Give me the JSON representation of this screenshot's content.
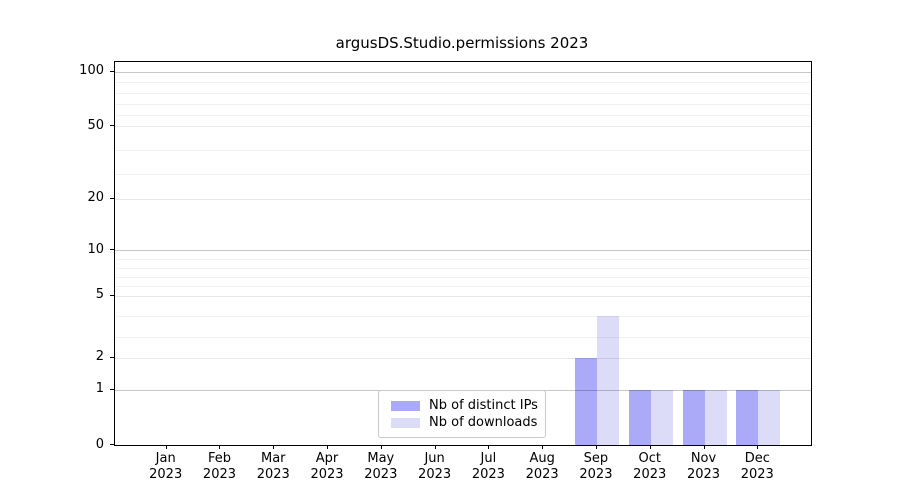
{
  "chart_data": {
    "type": "bar",
    "title": "argusDS.Studio.permissions 2023",
    "x_months": [
      "Jan",
      "Feb",
      "Mar",
      "Apr",
      "May",
      "Jun",
      "Jul",
      "Aug",
      "Sep",
      "Oct",
      "Nov",
      "Dec"
    ],
    "x_year": "2023",
    "series": [
      {
        "name": "Nb of distinct IPs",
        "color": "#aaaaf8",
        "values": [
          0,
          0,
          0,
          0,
          0,
          0,
          0,
          0,
          2,
          1,
          1,
          1
        ]
      },
      {
        "name": "Nb of downloads",
        "color": "#dcdcf8",
        "values": [
          0,
          0,
          0,
          0,
          0,
          0,
          0,
          0,
          4,
          1,
          1,
          1
        ]
      }
    ],
    "y_axis": {
      "scale": "symlog",
      "ticks": [
        0,
        1,
        2,
        5,
        10,
        20,
        50,
        100
      ],
      "minor_ticks": [
        3,
        4,
        6,
        7,
        8,
        9,
        30,
        40,
        60,
        70,
        80,
        90
      ],
      "range": [
        0,
        110
      ]
    },
    "grid": "horizontal",
    "legend": {
      "position": "inside-bottom-center"
    }
  }
}
